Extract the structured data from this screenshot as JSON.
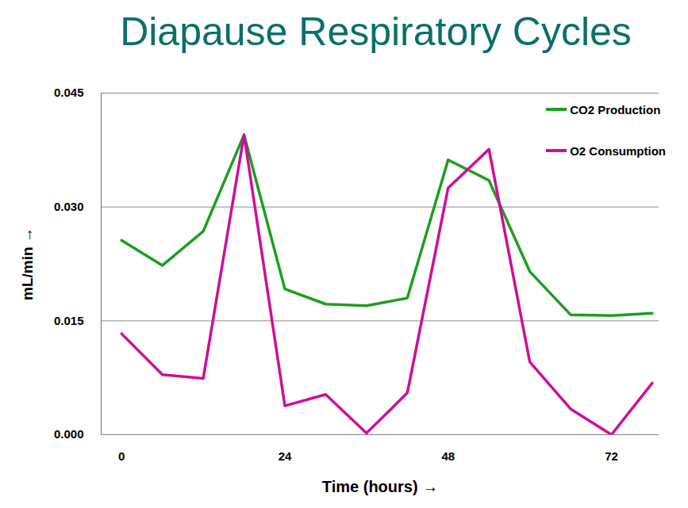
{
  "chart_data": {
    "type": "line",
    "title": "Diapause Respiratory Cycles",
    "x_label": "Time (hours)",
    "y_label": "mL/min",
    "x": [
      0,
      6,
      12,
      18,
      24,
      30,
      36,
      42,
      48,
      54,
      60,
      66,
      72,
      78
    ],
    "series": [
      {
        "name": "CO2 Production",
        "color": "#1f9e1f",
        "values": [
          0.0256,
          0.0223,
          0.0268,
          0.0395,
          0.0192,
          0.0172,
          0.017,
          0.018,
          0.0362,
          0.0335,
          0.0215,
          0.0158,
          0.0157,
          0.016
        ]
      },
      {
        "name": "O2 Consumption",
        "color": "#cc0f9c",
        "values": [
          0.0133,
          0.0079,
          0.0074,
          0.0395,
          0.0038,
          0.0053,
          0.0002,
          0.0055,
          0.0325,
          0.0376,
          0.0096,
          0.0034,
          0.0,
          0.0068
        ]
      }
    ],
    "xlim": [
      -3,
      79
    ],
    "xticks": [
      0,
      24,
      48,
      72
    ],
    "ylim": [
      0,
      0.045
    ],
    "yticks": [
      {
        "value": 0,
        "label": "0.000"
      },
      {
        "value": 0.015,
        "label": "0.015"
      },
      {
        "value": 0.03,
        "label": "0.030"
      },
      {
        "value": 0.045,
        "label": "0.045"
      }
    ],
    "grid": true,
    "legend": "top-right"
  }
}
